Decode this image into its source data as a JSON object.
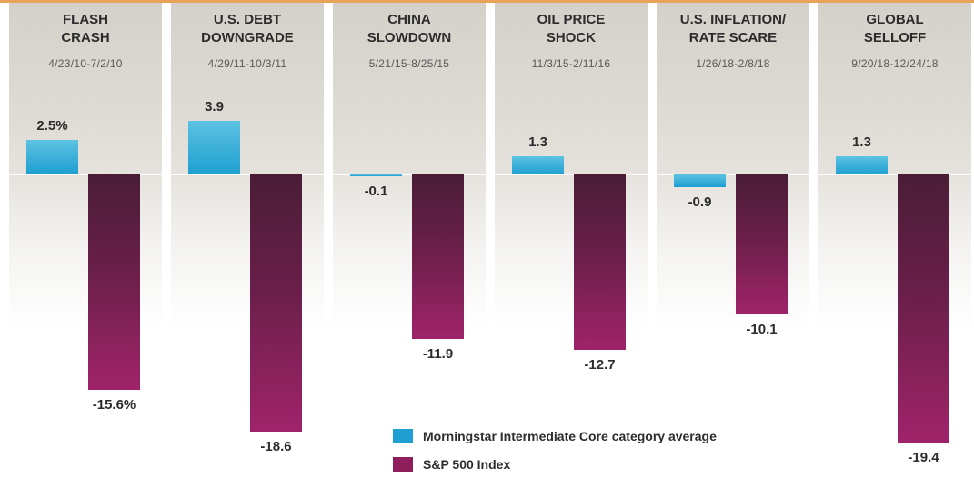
{
  "chart_data": {
    "type": "bar",
    "categories": [
      {
        "title": "FLASH\nCRASH",
        "dates": "4/23/10-7/2/10"
      },
      {
        "title": "U.S. DEBT\nDOWNGRADE",
        "dates": "4/29/11-10/3/11"
      },
      {
        "title": "CHINA\nSLOWDOWN",
        "dates": "5/21/15-8/25/15"
      },
      {
        "title": "OIL PRICE\nSHOCK",
        "dates": "11/3/15-2/11/16"
      },
      {
        "title": "U.S. INFLATION/\nRATE SCARE",
        "dates": "1/26/18-2/8/18"
      },
      {
        "title": "GLOBAL\nSELLOFF",
        "dates": "9/20/18-12/24/18"
      }
    ],
    "series": [
      {
        "name": "Morningstar Intermediate Core category average",
        "key": "core",
        "color": "#1f9fd1",
        "values": [
          2.5,
          3.9,
          -0.1,
          1.3,
          -0.9,
          1.3
        ],
        "labels": [
          "2.5%",
          "3.9",
          "-0.1",
          "1.3",
          "-0.9",
          "1.3"
        ]
      },
      {
        "name": "S&P 500 Index",
        "key": "sp",
        "color": "#8e1f5c",
        "values": [
          -15.6,
          -18.6,
          -11.9,
          -12.7,
          -10.1,
          -19.4
        ],
        "labels": [
          "-15.6%",
          "-18.6",
          "-11.9",
          "-12.7",
          "-10.1",
          "-19.4"
        ]
      }
    ],
    "ylim": [
      -19.4,
      3.9
    ],
    "grid": false,
    "legend": "bottom-right"
  }
}
